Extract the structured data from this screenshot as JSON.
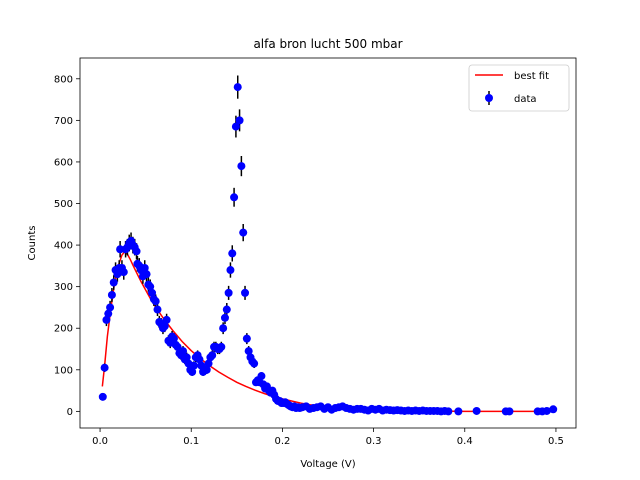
{
  "chart_data": {
    "type": "scatter",
    "title": "alfa bron lucht 500 mbar",
    "xlabel": "Voltage (V)",
    "ylabel": "Counts",
    "xlim": [
      -0.022,
      0.522
    ],
    "ylim": [
      -40,
      850
    ],
    "xticks": [
      0.0,
      0.1,
      0.2,
      0.3,
      0.4,
      0.5
    ],
    "xtick_labels": [
      "0.0",
      "0.1",
      "0.2",
      "0.3",
      "0.4",
      "0.5"
    ],
    "yticks": [
      0,
      100,
      200,
      300,
      400,
      500,
      600,
      700,
      800
    ],
    "ytick_labels": [
      "0",
      "100",
      "200",
      "300",
      "400",
      "500",
      "600",
      "700",
      "800"
    ],
    "grid": false,
    "legend_position": "top-right",
    "colors": {
      "data": "#0000ff",
      "fit": "#ff0000",
      "errorbar": "#000000"
    },
    "series": [
      {
        "name": "data",
        "kind": "errorbar-scatter",
        "points": [
          [
            0.003,
            35
          ],
          [
            0.005,
            105
          ],
          [
            0.007,
            220
          ],
          [
            0.009,
            235
          ],
          [
            0.011,
            250
          ],
          [
            0.013,
            280
          ],
          [
            0.015,
            310
          ],
          [
            0.017,
            340
          ],
          [
            0.019,
            330
          ],
          [
            0.021,
            345
          ],
          [
            0.022,
            390
          ],
          [
            0.024,
            345
          ],
          [
            0.026,
            335
          ],
          [
            0.028,
            390
          ],
          [
            0.03,
            395
          ],
          [
            0.032,
            405
          ],
          [
            0.034,
            410
          ],
          [
            0.036,
            400
          ],
          [
            0.038,
            395
          ],
          [
            0.04,
            385
          ],
          [
            0.041,
            355
          ],
          [
            0.043,
            350
          ],
          [
            0.045,
            340
          ],
          [
            0.047,
            325
          ],
          [
            0.049,
            345
          ],
          [
            0.051,
            330
          ],
          [
            0.053,
            305
          ],
          [
            0.055,
            300
          ],
          [
            0.057,
            285
          ],
          [
            0.059,
            270
          ],
          [
            0.061,
            265
          ],
          [
            0.063,
            245
          ],
          [
            0.065,
            215
          ],
          [
            0.067,
            210
          ],
          [
            0.069,
            200
          ],
          [
            0.071,
            205
          ],
          [
            0.073,
            220
          ],
          [
            0.075,
            170
          ],
          [
            0.077,
            165
          ],
          [
            0.079,
            180
          ],
          [
            0.081,
            175
          ],
          [
            0.083,
            160
          ],
          [
            0.085,
            155
          ],
          [
            0.087,
            140
          ],
          [
            0.089,
            135
          ],
          [
            0.091,
            145
          ],
          [
            0.093,
            125
          ],
          [
            0.095,
            130
          ],
          [
            0.097,
            115
          ],
          [
            0.099,
            100
          ],
          [
            0.101,
            95
          ],
          [
            0.103,
            110
          ],
          [
            0.105,
            130
          ],
          [
            0.107,
            135
          ],
          [
            0.109,
            125
          ],
          [
            0.111,
            110
          ],
          [
            0.113,
            95
          ],
          [
            0.115,
            100
          ],
          [
            0.117,
            100
          ],
          [
            0.119,
            115
          ],
          [
            0.121,
            130
          ],
          [
            0.123,
            135
          ],
          [
            0.125,
            155
          ],
          [
            0.127,
            155
          ],
          [
            0.129,
            150
          ],
          [
            0.131,
            150
          ],
          [
            0.133,
            155
          ],
          [
            0.135,
            200
          ],
          [
            0.137,
            225
          ],
          [
            0.139,
            245
          ],
          [
            0.141,
            285
          ],
          [
            0.143,
            340
          ],
          [
            0.145,
            380
          ],
          [
            0.147,
            515
          ],
          [
            0.149,
            685
          ],
          [
            0.151,
            780
          ],
          [
            0.153,
            700
          ],
          [
            0.155,
            590
          ],
          [
            0.157,
            430
          ],
          [
            0.159,
            285
          ],
          [
            0.161,
            175
          ],
          [
            0.163,
            145
          ],
          [
            0.165,
            130
          ],
          [
            0.167,
            120
          ],
          [
            0.169,
            115
          ],
          [
            0.171,
            70
          ],
          [
            0.173,
            75
          ],
          [
            0.175,
            70
          ],
          [
            0.177,
            85
          ],
          [
            0.179,
            65
          ],
          [
            0.181,
            55
          ],
          [
            0.183,
            60
          ],
          [
            0.185,
            50
          ],
          [
            0.187,
            45
          ],
          [
            0.189,
            50
          ],
          [
            0.191,
            40
          ],
          [
            0.193,
            30
          ],
          [
            0.195,
            25
          ],
          [
            0.197,
            25
          ],
          [
            0.199,
            20
          ],
          [
            0.201,
            20
          ],
          [
            0.203,
            22
          ],
          [
            0.205,
            18
          ],
          [
            0.207,
            15
          ],
          [
            0.209,
            12
          ],
          [
            0.211,
            10
          ],
          [
            0.213,
            12
          ],
          [
            0.215,
            8
          ],
          [
            0.217,
            10
          ],
          [
            0.219,
            8
          ],
          [
            0.222,
            10
          ],
          [
            0.226,
            12
          ],
          [
            0.23,
            6
          ],
          [
            0.234,
            8
          ],
          [
            0.238,
            10
          ],
          [
            0.242,
            12
          ],
          [
            0.246,
            6
          ],
          [
            0.25,
            10
          ],
          [
            0.254,
            4
          ],
          [
            0.258,
            8
          ],
          [
            0.262,
            10
          ],
          [
            0.266,
            12
          ],
          [
            0.27,
            8
          ],
          [
            0.274,
            6
          ],
          [
            0.278,
            4
          ],
          [
            0.282,
            6
          ],
          [
            0.286,
            6
          ],
          [
            0.29,
            4
          ],
          [
            0.294,
            2
          ],
          [
            0.298,
            6
          ],
          [
            0.302,
            4
          ],
          [
            0.306,
            6
          ],
          [
            0.31,
            2
          ],
          [
            0.314,
            4
          ],
          [
            0.318,
            3
          ],
          [
            0.322,
            2
          ],
          [
            0.326,
            3
          ],
          [
            0.33,
            2
          ],
          [
            0.334,
            1
          ],
          [
            0.338,
            2
          ],
          [
            0.342,
            1
          ],
          [
            0.346,
            2
          ],
          [
            0.35,
            1
          ],
          [
            0.354,
            2
          ],
          [
            0.358,
            1
          ],
          [
            0.362,
            1
          ],
          [
            0.366,
            1
          ],
          [
            0.37,
            1
          ],
          [
            0.374,
            0
          ],
          [
            0.378,
            1
          ],
          [
            0.382,
            0
          ],
          [
            0.393,
            0
          ],
          [
            0.413,
            1
          ],
          [
            0.445,
            0
          ],
          [
            0.449,
            0
          ],
          [
            0.48,
            0
          ],
          [
            0.485,
            0
          ],
          [
            0.49,
            1
          ],
          [
            0.497,
            5
          ]
        ]
      },
      {
        "name": "best fit",
        "kind": "line",
        "x": [
          0.0025,
          0.005,
          0.008,
          0.012,
          0.016,
          0.02,
          0.024,
          0.027,
          0.03,
          0.033,
          0.036,
          0.04,
          0.045,
          0.05,
          0.055,
          0.06,
          0.07,
          0.08,
          0.09,
          0.1,
          0.11,
          0.12,
          0.13,
          0.14,
          0.15,
          0.16,
          0.17,
          0.18,
          0.19,
          0.2,
          0.21,
          0.22,
          0.23,
          0.24,
          0.26,
          0.28,
          0.3,
          0.33,
          0.36,
          0.4,
          0.45,
          0.5
        ],
        "y": [
          60,
          110,
          180,
          250,
          310,
          350,
          376,
          384,
          378,
          366,
          352,
          334,
          312,
          292,
          272,
          254,
          222,
          194,
          168,
          146,
          127,
          110,
          95,
          82,
          70,
          60,
          51,
          43,
          36,
          30,
          25,
          20,
          16,
          13,
          8,
          5,
          3,
          1,
          1,
          0,
          0,
          0
        ]
      }
    ]
  }
}
